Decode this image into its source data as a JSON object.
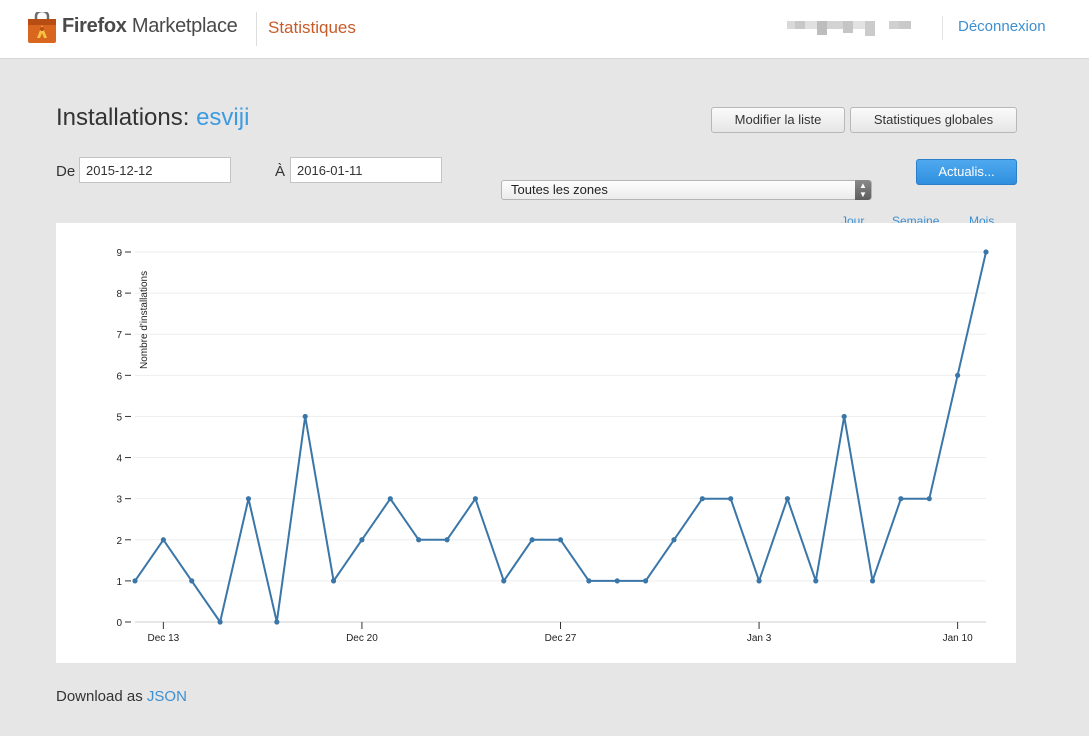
{
  "header": {
    "brand_bold": "Firefox",
    "brand_rest": " Marketplace",
    "section": "Statistiques",
    "logout": "Déconnexion",
    "logo_icon": "marketplace-bag-icon"
  },
  "page": {
    "title_prefix": "Installations: ",
    "app_name": "esviji",
    "edit_list_label": "Modifier la liste",
    "global_stats_label": "Statistiques globales",
    "from_label": "De",
    "to_label": "À",
    "from_value": "2015-12-12",
    "to_value": "2016-01-11",
    "region_selected": "Toutes les zones",
    "update_label": "Actualis...",
    "granularity": [
      "Jour",
      "Semaine",
      "Mois"
    ],
    "download_prefix": "Download as ",
    "download_link": "JSON"
  },
  "colors": {
    "accent": "#3d9be0",
    "section": "#c75b2a",
    "line": "#3a76a8",
    "update_button": "#3394e6"
  },
  "chart_data": {
    "type": "line",
    "ylabel": "Nombre d'installations",
    "xlabel": "",
    "ylim": [
      0,
      9
    ],
    "y_ticks": [
      0,
      1,
      2,
      3,
      4,
      5,
      6,
      7,
      8,
      9
    ],
    "x_tick_labels": [
      "Dec 13",
      "Dec 20",
      "Dec 27",
      "Jan 3",
      "Jan 10"
    ],
    "grid": true,
    "x": [
      "2015-12-12",
      "2015-12-13",
      "2015-12-14",
      "2015-12-15",
      "2015-12-16",
      "2015-12-17",
      "2015-12-18",
      "2015-12-19",
      "2015-12-20",
      "2015-12-21",
      "2015-12-22",
      "2015-12-23",
      "2015-12-24",
      "2015-12-25",
      "2015-12-26",
      "2015-12-27",
      "2015-12-28",
      "2015-12-29",
      "2015-12-30",
      "2015-12-31",
      "2016-01-01",
      "2016-01-02",
      "2016-01-03",
      "2016-01-04",
      "2016-01-05",
      "2016-01-06",
      "2016-01-07",
      "2016-01-08",
      "2016-01-09",
      "2016-01-10",
      "2016-01-11"
    ],
    "series": [
      {
        "values": [
          1,
          2,
          1,
          0,
          3,
          0,
          5,
          1,
          2,
          3,
          2,
          2,
          3,
          1,
          2,
          2,
          1,
          1,
          1,
          2,
          3,
          3,
          1,
          3,
          1,
          5,
          1,
          3,
          3,
          6,
          9
        ]
      }
    ]
  }
}
